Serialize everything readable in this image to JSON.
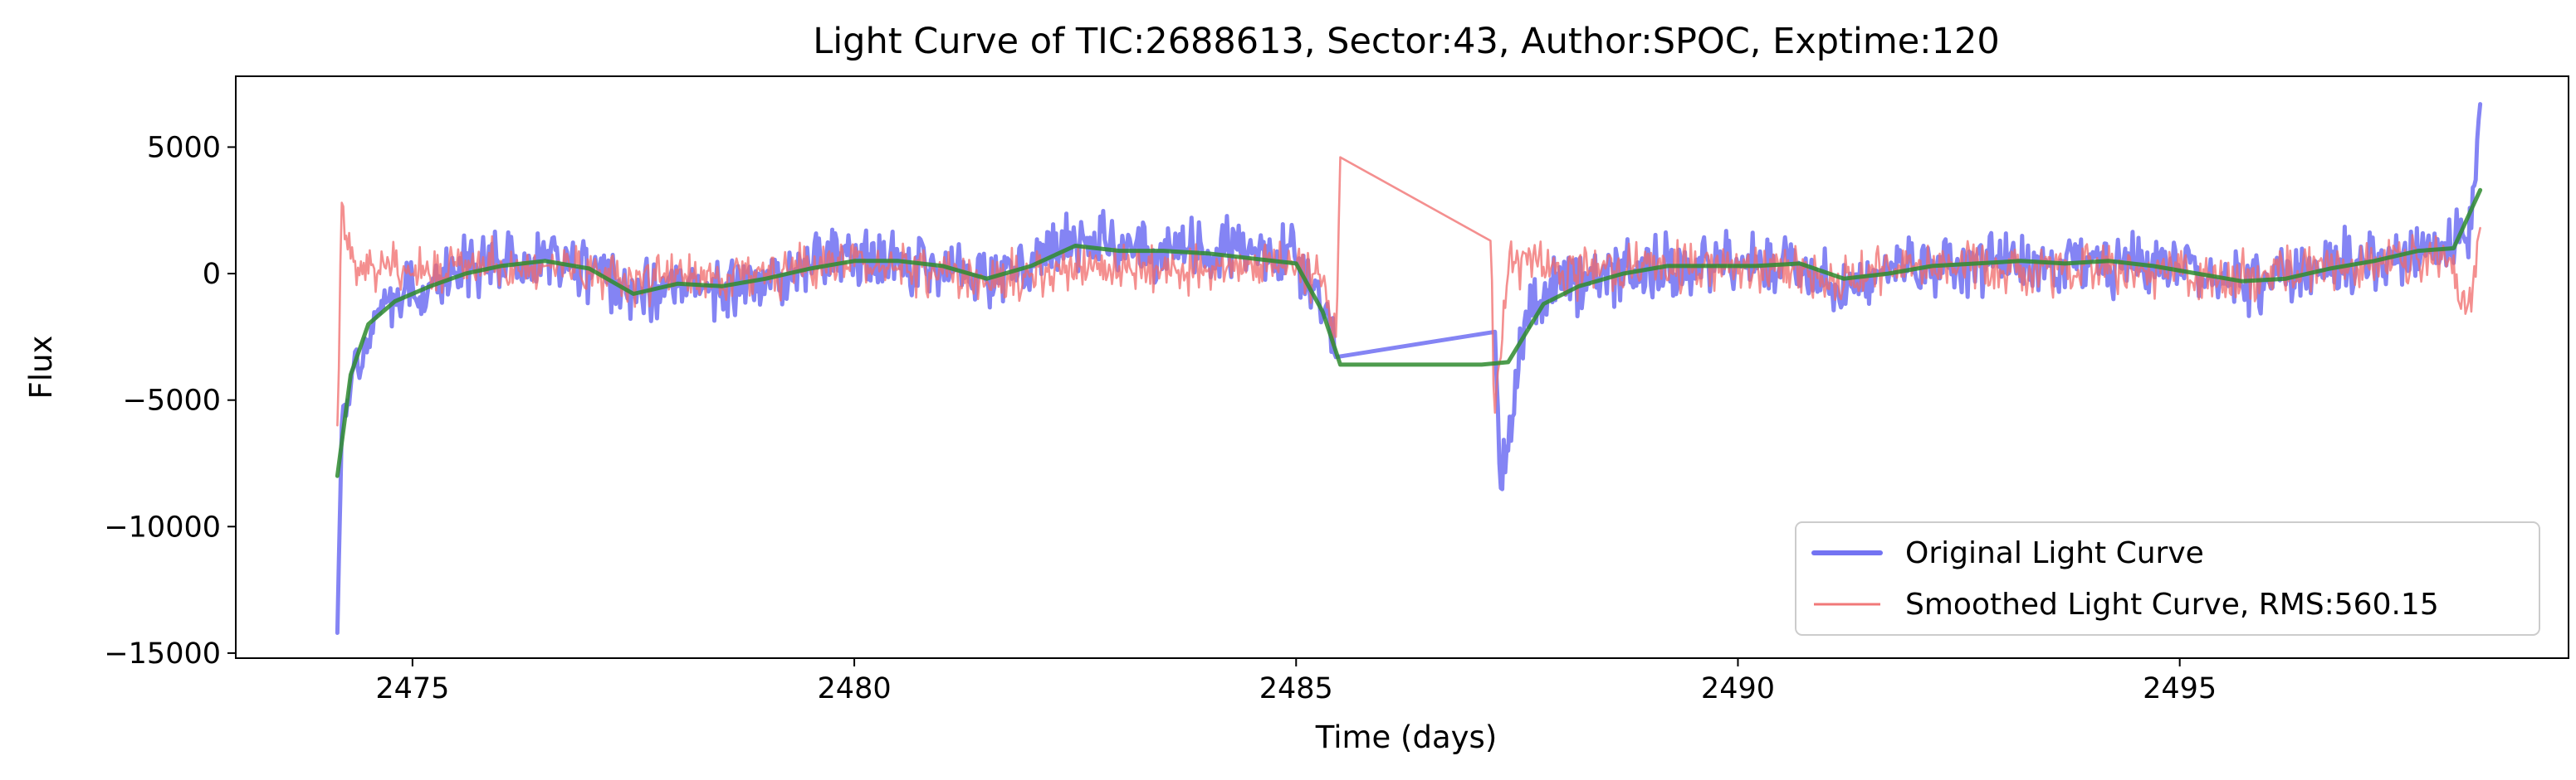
{
  "chart_data": {
    "type": "line",
    "title": "Light Curve of TIC:2688613, Sector:43, Author:SPOC, Exptime:120",
    "xlabel": "Time (days)",
    "ylabel": "Flux",
    "xlim": [
      2473.0,
      2499.4
    ],
    "ylim": [
      -15200,
      7800
    ],
    "xticks": [
      2475,
      2480,
      2485,
      2490,
      2495
    ],
    "yticks": [
      -15000,
      -10000,
      -5000,
      0,
      5000
    ],
    "xtick_labels": [
      "2475",
      "2480",
      "2485",
      "2490",
      "2495"
    ],
    "ytick_labels": [
      "−15000",
      "−10000",
      "−5000",
      "0",
      "5000"
    ],
    "grid": false,
    "legend_position": "lower-right",
    "colors": {
      "original": "#5b5bf0",
      "smoothed": "#f06a6a",
      "trend": "#2e8b2e"
    },
    "series": [
      {
        "name": "Original Light Curve",
        "color": "#5b5bf0",
        "gap": [
          2485.5,
          2487.25
        ],
        "x": [
          2474.15,
          2474.2,
          2474.3,
          2474.45,
          2474.6,
          2474.8,
          2475.0,
          2475.3,
          2475.6,
          2476.0,
          2476.5,
          2477.0,
          2477.5,
          2478.0,
          2478.5,
          2479.0,
          2479.5,
          2480.0,
          2480.5,
          2481.0,
          2481.5,
          2482.0,
          2482.5,
          2483.0,
          2483.5,
          2484.0,
          2484.5,
          2485.0,
          2485.3,
          2485.45,
          2487.25,
          2487.3,
          2487.4,
          2487.6,
          2488.0,
          2488.5,
          2489.0,
          2489.5,
          2490.0,
          2490.5,
          2491.0,
          2491.5,
          2492.0,
          2492.5,
          2493.0,
          2493.5,
          2494.0,
          2494.5,
          2495.0,
          2495.5,
          2496.0,
          2496.5,
          2497.0,
          2497.5,
          2498.0,
          2498.3,
          2498.4
        ],
        "values": [
          -14200,
          -6000,
          -4500,
          -3000,
          -1500,
          -1000,
          -400,
          -100,
          300,
          400,
          600,
          200,
          -900,
          -500,
          -600,
          -200,
          300,
          600,
          500,
          300,
          -300,
          300,
          1200,
          1100,
          1000,
          900,
          800,
          400,
          -1500,
          -3300,
          -2300,
          -7500,
          -7000,
          -1500,
          -600,
          0,
          300,
          300,
          300,
          500,
          -300,
          0,
          200,
          300,
          600,
          300,
          500,
          300,
          100,
          -400,
          -300,
          200,
          500,
          800,
          1200,
          1800,
          6700
        ]
      },
      {
        "name": "Smoothed Light Curve, RMS:560.15",
        "color": "#f06a6a",
        "gap": [
          2485.5,
          2487.25
        ],
        "x": [
          2474.15,
          2474.2,
          2474.25,
          2474.35,
          2474.5,
          2474.7,
          2475.0,
          2475.5,
          2476.0,
          2476.5,
          2477.0,
          2477.5,
          2478.0,
          2478.5,
          2479.0,
          2479.5,
          2480.0,
          2480.5,
          2481.0,
          2481.5,
          2482.0,
          2482.5,
          2483.0,
          2483.5,
          2484.0,
          2484.5,
          2485.0,
          2485.3,
          2485.45,
          2485.5,
          2487.2,
          2487.25,
          2487.4,
          2487.6,
          2488.0,
          2488.5,
          2489.0,
          2489.5,
          2490.0,
          2490.5,
          2491.0,
          2491.5,
          2492.0,
          2492.5,
          2493.0,
          2493.5,
          2494.0,
          2494.5,
          2495.0,
          2495.5,
          2496.0,
          2496.5,
          2497.0,
          2497.5,
          2498.0,
          2498.3,
          2498.4
        ],
        "values": [
          -6000,
          2800,
          1500,
          500,
          0,
          200,
          0,
          300,
          500,
          300,
          0,
          -300,
          0,
          -200,
          0,
          200,
          300,
          200,
          0,
          -300,
          0,
          400,
          300,
          200,
          100,
          300,
          200,
          -300,
          -2500,
          4600,
          1300,
          -5500,
          0,
          800,
          0,
          200,
          300,
          200,
          0,
          300,
          -200,
          0,
          200,
          300,
          100,
          200,
          300,
          100,
          0,
          -200,
          0,
          200,
          300,
          500,
          700,
          -1500,
          1800
        ]
      },
      {
        "color": "#2e8b2e",
        "x": [
          2474.15,
          2474.3,
          2474.5,
          2474.8,
          2475.2,
          2475.6,
          2476.0,
          2476.5,
          2477.0,
          2477.5,
          2478.0,
          2478.5,
          2479.0,
          2479.5,
          2480.0,
          2480.5,
          2481.0,
          2481.5,
          2482.0,
          2482.5,
          2483.0,
          2483.5,
          2484.0,
          2484.5,
          2485.0,
          2485.3,
          2485.5,
          2487.1,
          2487.4,
          2487.8,
          2488.2,
          2488.7,
          2489.2,
          2489.7,
          2490.2,
          2490.7,
          2491.2,
          2491.7,
          2492.2,
          2492.7,
          2493.2,
          2493.7,
          2494.2,
          2494.7,
          2495.2,
          2495.7,
          2496.2,
          2496.7,
          2497.2,
          2497.7,
          2498.1,
          2498.4
        ],
        "values": [
          -8000,
          -4000,
          -2000,
          -1100,
          -500,
          0,
          300,
          500,
          200,
          -800,
          -400,
          -500,
          -200,
          200,
          500,
          500,
          300,
          -200,
          300,
          1100,
          900,
          900,
          800,
          600,
          400,
          -1500,
          -3600,
          -3600,
          -3500,
          -1200,
          -500,
          0,
          300,
          300,
          300,
          400,
          -200,
          0,
          300,
          400,
          500,
          400,
          500,
          300,
          0,
          -300,
          -200,
          200,
          500,
          900,
          1000,
          3300
        ]
      }
    ]
  }
}
